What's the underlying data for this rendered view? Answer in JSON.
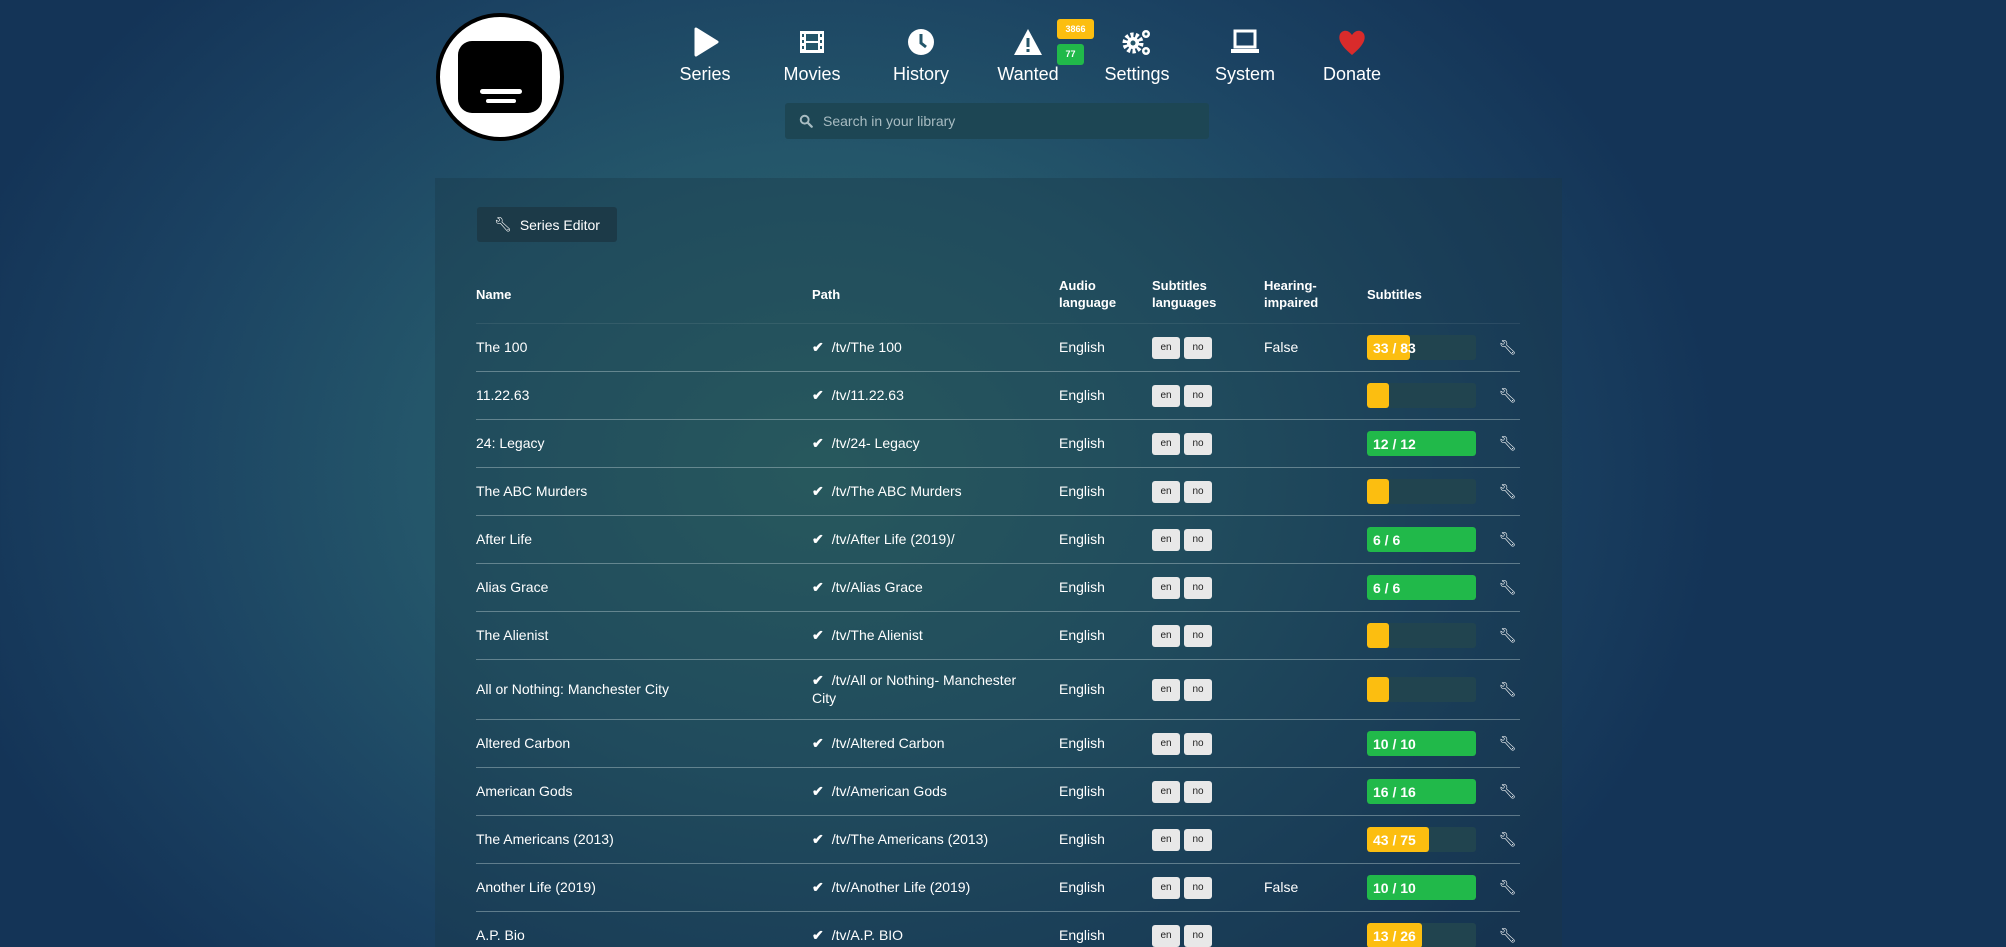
{
  "colors": {
    "warning": "#fcbe10",
    "success": "#21b94a",
    "heart": "#d92b2b"
  },
  "nav": [
    {
      "label": "Series",
      "icon": "play-icon"
    },
    {
      "label": "Movies",
      "icon": "film-icon"
    },
    {
      "label": "History",
      "icon": "clock-icon"
    },
    {
      "label": "Wanted",
      "icon": "warning-icon",
      "badges": [
        "3866",
        "77"
      ]
    },
    {
      "label": "Settings",
      "icon": "gears-icon"
    },
    {
      "label": "System",
      "icon": "laptop-icon"
    },
    {
      "label": "Donate",
      "icon": "heart-icon"
    }
  ],
  "search": {
    "placeholder": "Search in your library",
    "value": ""
  },
  "toolbar": {
    "series_editor_label": "Series Editor"
  },
  "table": {
    "headers": {
      "name": "Name",
      "path": "Path",
      "audio": "Audio language",
      "subs": "Subtitles languages",
      "hi": "Hearing-impaired",
      "subtitles": "Subtitles"
    },
    "rows": [
      {
        "name": "The 100",
        "path": "/tv/The 100",
        "audio": "English",
        "langs": [
          "en",
          "no"
        ],
        "hi": "False",
        "progress": {
          "label": "33 / 83",
          "fraction": 0.398,
          "status": "warning"
        }
      },
      {
        "name": "11.22.63",
        "path": "/tv/11.22.63",
        "audio": "English",
        "langs": [
          "en",
          "no"
        ],
        "hi": "",
        "progress": {
          "label": "",
          "fraction": 0,
          "status": "warning"
        }
      },
      {
        "name": "24: Legacy",
        "path": "/tv/24- Legacy",
        "audio": "English",
        "langs": [
          "en",
          "no"
        ],
        "hi": "",
        "progress": {
          "label": "12 / 12",
          "fraction": 1,
          "status": "success"
        }
      },
      {
        "name": "The ABC Murders",
        "path": "/tv/The ABC Murders",
        "audio": "English",
        "langs": [
          "en",
          "no"
        ],
        "hi": "",
        "progress": {
          "label": "",
          "fraction": 0,
          "status": "warning"
        }
      },
      {
        "name": "After Life",
        "path": "/tv/After Life (2019)/",
        "audio": "English",
        "langs": [
          "en",
          "no"
        ],
        "hi": "",
        "progress": {
          "label": "6 / 6",
          "fraction": 1,
          "status": "success"
        }
      },
      {
        "name": "Alias Grace",
        "path": "/tv/Alias Grace",
        "audio": "English",
        "langs": [
          "en",
          "no"
        ],
        "hi": "",
        "progress": {
          "label": "6 / 6",
          "fraction": 1,
          "status": "success"
        }
      },
      {
        "name": "The Alienist",
        "path": "/tv/The Alienist",
        "audio": "English",
        "langs": [
          "en",
          "no"
        ],
        "hi": "",
        "progress": {
          "label": "",
          "fraction": 0,
          "status": "warning"
        }
      },
      {
        "name": "All or Nothing: Manchester City",
        "path": "/tv/All or Nothing- Manchester City",
        "audio": "English",
        "langs": [
          "en",
          "no"
        ],
        "hi": "",
        "progress": {
          "label": "",
          "fraction": 0,
          "status": "warning"
        }
      },
      {
        "name": "Altered Carbon",
        "path": "/tv/Altered Carbon",
        "audio": "English",
        "langs": [
          "en",
          "no"
        ],
        "hi": "",
        "progress": {
          "label": "10 / 10",
          "fraction": 1,
          "status": "success"
        }
      },
      {
        "name": "American Gods",
        "path": "/tv/American Gods",
        "audio": "English",
        "langs": [
          "en",
          "no"
        ],
        "hi": "",
        "progress": {
          "label": "16 / 16",
          "fraction": 1,
          "status": "success"
        }
      },
      {
        "name": "The Americans (2013)",
        "path": "/tv/The Americans (2013)",
        "audio": "English",
        "langs": [
          "en",
          "no"
        ],
        "hi": "",
        "progress": {
          "label": "43 / 75",
          "fraction": 0.573,
          "status": "warning"
        }
      },
      {
        "name": "Another Life (2019)",
        "path": "/tv/Another Life (2019)",
        "audio": "English",
        "langs": [
          "en",
          "no"
        ],
        "hi": "False",
        "progress": {
          "label": "10 / 10",
          "fraction": 1,
          "status": "success"
        }
      },
      {
        "name": "A.P. Bio",
        "path": "/tv/A.P. BIO",
        "audio": "English",
        "langs": [
          "en",
          "no"
        ],
        "hi": "",
        "progress": {
          "label": "13 / 26",
          "fraction": 0.5,
          "status": "warning"
        }
      }
    ]
  }
}
